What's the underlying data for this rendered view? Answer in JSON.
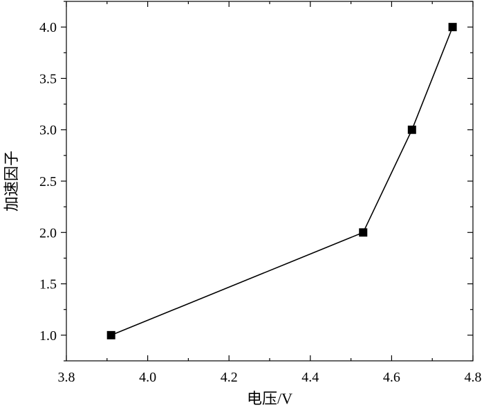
{
  "chart_data": {
    "type": "line",
    "title": "",
    "xlabel": "电压/V",
    "ylabel": "加速因子",
    "xlim": [
      3.8,
      4.8
    ],
    "ylim": [
      0.75,
      4.25
    ],
    "x_ticks": [
      3.8,
      4.0,
      4.2,
      4.4,
      4.6,
      4.8
    ],
    "x_tick_labels": [
      "3.8",
      "4.0",
      "4.2",
      "4.4",
      "4.6",
      "4.8"
    ],
    "y_ticks": [
      1.0,
      1.5,
      2.0,
      2.5,
      3.0,
      3.5,
      4.0
    ],
    "y_tick_labels": [
      "1.0",
      "1.5",
      "2.0",
      "2.5",
      "3.0",
      "3.5",
      "4.0"
    ],
    "grid": false,
    "marker": "square",
    "line_color": "#000000",
    "series": [
      {
        "x": [
          3.91,
          4.53,
          4.65,
          4.75
        ],
        "y": [
          1.0,
          2.0,
          3.0,
          4.0
        ]
      }
    ]
  }
}
